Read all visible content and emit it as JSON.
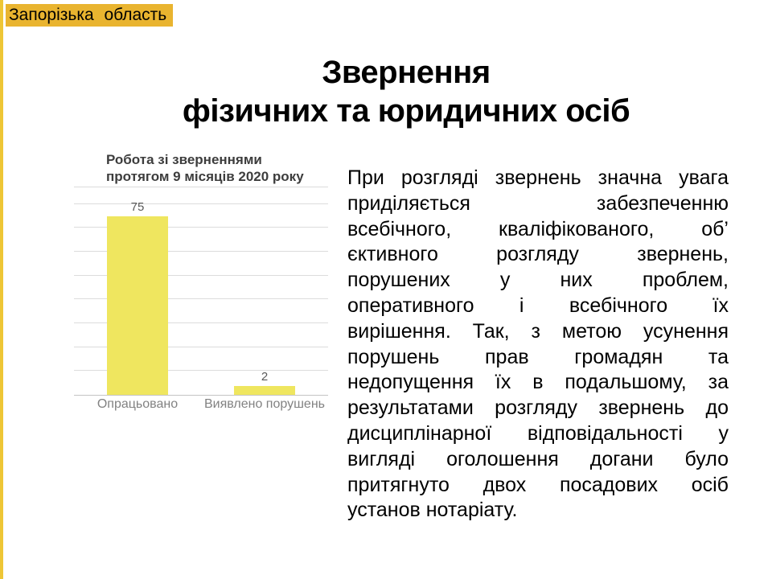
{
  "slide": {
    "region_label": "Запорізька область",
    "title_line1": "Звернення",
    "title_line2": "фізичних та юридичних осіб"
  },
  "chart": {
    "title_line1": "Робота зі зверненнями",
    "title_line2": "протягом 9 місяців 2020 року"
  },
  "chart_data": {
    "type": "bar",
    "title": "Робота зі зверненнями протягом 9 місяців 2020 року",
    "categories": [
      "Опрацьовано",
      "Виявлено порушень"
    ],
    "values": [
      75,
      2
    ],
    "data_labels": [
      75,
      2
    ],
    "xlabel": "",
    "ylabel": "",
    "ylim": [
      0,
      87
    ],
    "gridlines_y": [
      10,
      20,
      30,
      40,
      50,
      60,
      70,
      80
    ],
    "grid": "horizontal",
    "legend": "none",
    "y_axis_labels": "none",
    "bar_color": "#efe65f"
  },
  "body": {
    "text": "При розгляді звернень значна увага приділяється забезпеченню всебічного, кваліфікованого, об’єктивного розгляду звернень, порушених у них проблем, оперативного і всебічного їх вирішення. Так, з метою усунення порушень прав громадян та недопущення їх в подальшому, за результатами розгляду звернень до дисциплінарної відповідальності у вигляді оголошення догани було притягнуто двох посадових осіб установ нотаріату.",
    "lines": [
      "При розгляді звернень значна увага",
      "приділяється забезпеченню",
      "всебічного, кваліфікованого, об’",
      "єктивного розгляду звернень,",
      "порушених у них проблем,",
      "оперативного і всебічного їх",
      "вирішення. Так, з метою усунення",
      "порушень прав громадян та",
      "недопущення їх в подальшому, за",
      "результатами розгляду звернень до",
      "дисциплінарної відповідальності у",
      "вигляді оголошення догани було",
      "притягнуто двох посадових осіб",
      "установ нотаріату."
    ]
  },
  "colors": {
    "background": "#ffffff",
    "accent_strip_gold": "#eec636",
    "label_highlight_gold": "#e9b42f",
    "bar_yellow": "#efe65f",
    "gridline_gray": "#dcdcdc",
    "axis_gray": "#c4c4c4",
    "chart_title_gray": "#3d3d3d",
    "category_label_gray": "#828282",
    "value_label_gray": "#595959",
    "title_black": "#000000"
  }
}
